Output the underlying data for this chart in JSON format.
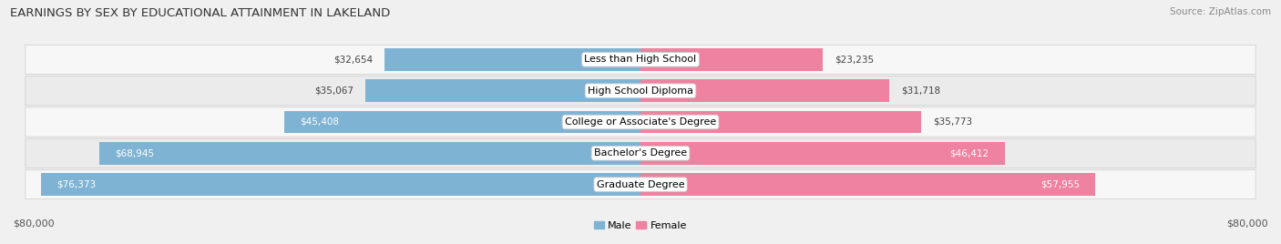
{
  "title": "EARNINGS BY SEX BY EDUCATIONAL ATTAINMENT IN LAKELAND",
  "source": "Source: ZipAtlas.com",
  "categories": [
    "Less than High School",
    "High School Diploma",
    "College or Associate's Degree",
    "Bachelor's Degree",
    "Graduate Degree"
  ],
  "male_values": [
    32654,
    35067,
    45408,
    68945,
    76373
  ],
  "female_values": [
    23235,
    31718,
    35773,
    46412,
    57955
  ],
  "male_color": "#7fb3d3",
  "female_color": "#ee82a0",
  "row_bg_light": "#f7f7f7",
  "row_bg_dark": "#ebebeb",
  "max_value": 80000,
  "xlabel_left": "$80,000",
  "xlabel_right": "$80,000",
  "title_fontsize": 9.5,
  "label_fontsize": 8,
  "tick_fontsize": 8,
  "source_fontsize": 7.5,
  "value_fontsize": 7.5
}
